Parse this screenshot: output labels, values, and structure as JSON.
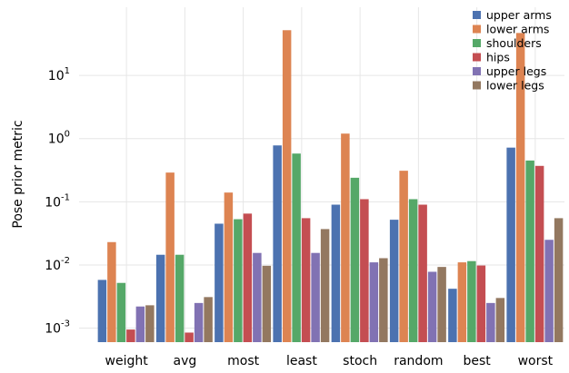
{
  "chart_data": {
    "type": "bar",
    "ylabel": "Pose prior metric",
    "xlabel": "",
    "yscale": "log",
    "ylim": [
      0.0006,
      120
    ],
    "grid": true,
    "legend_position": "top-right",
    "categories": [
      "weight",
      "avg",
      "most",
      "least",
      "stoch",
      "random",
      "best",
      "worst"
    ],
    "y_ticks": [
      {
        "value": 0.001,
        "base": "10",
        "exp": "-3"
      },
      {
        "value": 0.01,
        "base": "10",
        "exp": "-2"
      },
      {
        "value": 0.1,
        "base": "10",
        "exp": "-1"
      },
      {
        "value": 1,
        "base": "10",
        "exp": "0"
      },
      {
        "value": 10,
        "base": "10",
        "exp": "1"
      }
    ],
    "series": [
      {
        "name": "upper arms",
        "color": "#4C72B0",
        "values": [
          0.0058,
          0.0145,
          0.045,
          0.78,
          0.09,
          0.052,
          0.0042,
          0.72
        ]
      },
      {
        "name": "lower arms",
        "color": "#DD8452",
        "values": [
          0.023,
          0.29,
          0.14,
          52,
          1.2,
          0.31,
          0.011,
          47
        ]
      },
      {
        "name": "shoulders",
        "color": "#55A868",
        "values": [
          0.0052,
          0.0145,
          0.053,
          0.58,
          0.24,
          0.11,
          0.0115,
          0.45
        ]
      },
      {
        "name": "hips",
        "color": "#C44E52",
        "values": [
          0.00095,
          0.00085,
          0.065,
          0.055,
          0.11,
          0.09,
          0.0098,
          0.37
        ]
      },
      {
        "name": "upper legs",
        "color": "#8172B3",
        "values": [
          0.0022,
          0.0025,
          0.0155,
          0.0155,
          0.011,
          0.0078,
          0.0025,
          0.025
        ]
      },
      {
        "name": "lower legs",
        "color": "#937860",
        "values": [
          0.0023,
          0.0031,
          0.0097,
          0.037,
          0.0128,
          0.0093,
          0.003,
          0.055
        ]
      }
    ]
  }
}
